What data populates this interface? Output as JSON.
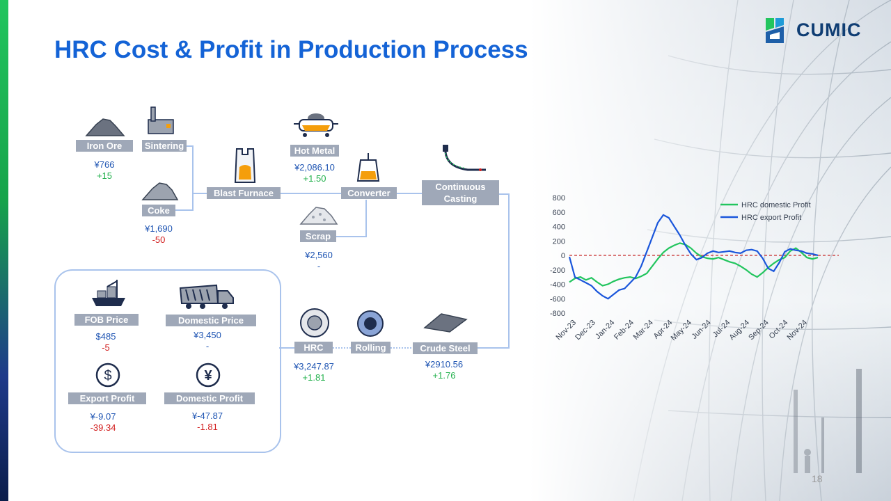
{
  "title": "HRC Cost & Profit in Production Process",
  "logo": {
    "text": "CUMIC"
  },
  "page_number": "18",
  "colors": {
    "title": "#1463d6",
    "label_bg": "#9fa8b8",
    "price": "#1f55b3",
    "positive": "#22b14c",
    "negative": "#d21e1e",
    "connector": "#a9c3ec",
    "domestic_line": "#22c55e",
    "export_line": "#1a56db",
    "zero_line": "#c62828"
  },
  "process": {
    "iron_ore": {
      "label": "Iron Ore",
      "price": "¥766",
      "change": "+15"
    },
    "sintering": {
      "label": "Sintering"
    },
    "coke": {
      "label": "Coke",
      "price": "¥1,690",
      "change": "-50"
    },
    "blast_furnace": {
      "label": "Blast Furnace"
    },
    "hot_metal": {
      "label": "Hot Metal",
      "price": "¥2,086.10",
      "change": "+1.50"
    },
    "converter": {
      "label": "Converter"
    },
    "scrap": {
      "label": "Scrap",
      "price": "¥2,560",
      "change": "-"
    },
    "continuous_casting": {
      "label_line1": "Continuous",
      "label_line2": "Casting"
    },
    "crude_steel": {
      "label": "Crude Steel",
      "price": "¥2910.56",
      "change": "+1.76"
    },
    "rolling": {
      "label": "Rolling"
    },
    "hrc": {
      "label": "HRC",
      "price": "¥3,247.87",
      "change": "+1.81"
    }
  },
  "summary": {
    "fob_price": {
      "label": "FOB Price",
      "price": "$485",
      "change": "-5"
    },
    "domestic_price": {
      "label": "Domestic Price",
      "price": "¥3,450",
      "change": "-"
    },
    "export_profit": {
      "label": "Export Profit",
      "price": "¥-9.07",
      "change": "-39.34"
    },
    "domestic_profit": {
      "label": "Domestic Profit",
      "price": "¥-47.87",
      "change": "-1.81"
    }
  },
  "icons": [
    "ore-pile-icon",
    "factory-icon",
    "coke-pile-icon",
    "blast-furnace-icon",
    "hot-metal-ladle-icon",
    "converter-icon",
    "scrap-pile-icon",
    "continuous-caster-icon",
    "steel-slab-icon",
    "rolling-roll-icon",
    "steel-coil-icon",
    "cargo-ship-icon",
    "dump-truck-icon",
    "dollar-icon",
    "yuan-icon"
  ],
  "chart_data": {
    "type": "line",
    "y_ticks": [
      "800",
      "600",
      "400",
      "200",
      "0",
      "-200",
      "-400",
      "-600",
      "-800"
    ],
    "ylim": [
      -800,
      800
    ],
    "x_ticks": [
      "Nov-23",
      "Dec-23",
      "Jan-24",
      "Feb-24",
      "Mar-24",
      "Apr-24",
      "May-24",
      "Jun-24",
      "Jul-24",
      "Aug-24",
      "Sep-24",
      "Oct-24",
      "Nov-24"
    ],
    "reference_line": 0,
    "legend_position": "top-right",
    "grid": false,
    "series": [
      {
        "name": "HRC domestic Profit",
        "color": "#22c55e",
        "values": [
          -370,
          -320,
          -300,
          -340,
          -310,
          -370,
          -420,
          -400,
          -360,
          -330,
          -310,
          -300,
          -320,
          -290,
          -250,
          -150,
          -50,
          40,
          100,
          140,
          170,
          150,
          100,
          30,
          -20,
          -40,
          -50,
          -30,
          -60,
          -90,
          -110,
          -150,
          -200,
          -260,
          -300,
          -240,
          -170,
          -110,
          -60,
          -30,
          60,
          100,
          40,
          -30,
          -50,
          -30
        ]
      },
      {
        "name": "HRC export Profit",
        "color": "#1a56db",
        "values": [
          -20,
          -300,
          -340,
          -380,
          -420,
          -500,
          -560,
          -600,
          -540,
          -480,
          -460,
          -380,
          -300,
          -150,
          50,
          250,
          450,
          560,
          520,
          400,
          280,
          140,
          20,
          -60,
          -30,
          30,
          60,
          40,
          50,
          60,
          40,
          30,
          70,
          80,
          60,
          -40,
          -180,
          -220,
          -100,
          50,
          90,
          70,
          60,
          30,
          20,
          0
        ]
      }
    ]
  }
}
